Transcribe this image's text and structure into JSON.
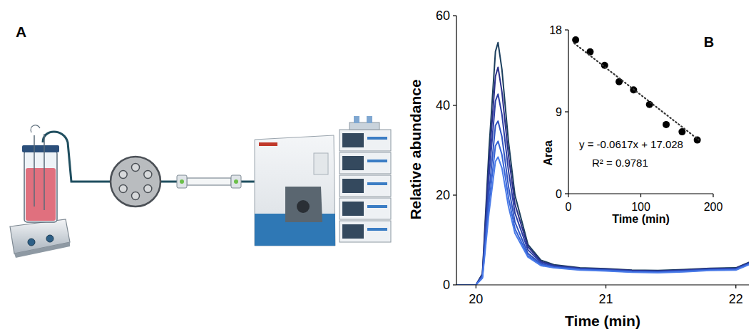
{
  "panel_labels": [
    "A",
    "B"
  ],
  "chart_data": [
    {
      "type": "line",
      "x_label": "Time (min)",
      "y_label": "Relative abundance",
      "x": [
        19.85,
        19.95,
        20.0,
        20.05,
        20.1,
        20.15,
        20.17,
        20.2,
        20.25,
        20.3,
        20.4,
        20.5,
        20.6,
        20.8,
        21.0,
        21.2,
        21.4,
        21.6,
        21.8,
        22.0,
        22.1
      ],
      "series": [
        {
          "color": "#1c3f5e",
          "values": [
            0,
            0,
            0,
            2.5,
            30,
            52,
            54,
            48,
            32,
            20,
            9,
            5.5,
            4.5,
            3.8,
            3.6,
            3.3,
            3.2,
            3.4,
            3.7,
            3.8,
            5.0
          ]
        },
        {
          "color": "#2a2f8a",
          "values": [
            0,
            0,
            0,
            2.3,
            27,
            46.5,
            48.5,
            43,
            29,
            18,
            8.5,
            5.2,
            4.3,
            3.7,
            3.5,
            3.2,
            3.1,
            3.3,
            3.6,
            3.7,
            4.9
          ]
        },
        {
          "color": "#2c3fa5",
          "values": [
            0,
            0,
            0,
            2.1,
            24,
            41,
            42.5,
            38,
            25.5,
            16,
            7.8,
            5.0,
            4.2,
            3.6,
            3.4,
            3.1,
            3.0,
            3.2,
            3.5,
            3.6,
            4.8
          ]
        },
        {
          "color": "#2f53c0",
          "values": [
            0,
            0,
            0,
            1.9,
            20.5,
            35.5,
            36.5,
            33,
            22,
            14,
            7,
            4.7,
            4.0,
            3.5,
            3.3,
            3.0,
            2.9,
            3.1,
            3.4,
            3.5,
            4.7
          ]
        },
        {
          "color": "#3563d6",
          "values": [
            0,
            0,
            0,
            1.7,
            18,
            31,
            32,
            29,
            19.5,
            12.5,
            6.5,
            4.5,
            3.9,
            3.4,
            3.2,
            2.9,
            2.8,
            3.0,
            3.3,
            3.4,
            4.6
          ]
        },
        {
          "color": "#4a7be8",
          "values": [
            0,
            0,
            0,
            1.5,
            16,
            27.5,
            28.5,
            26,
            17.5,
            11.5,
            6.2,
            4.3,
            3.8,
            3.3,
            3.1,
            2.8,
            2.7,
            2.9,
            3.2,
            3.3,
            4.5
          ]
        }
      ],
      "xlim": [
        19.85,
        22.1
      ],
      "ylim": [
        0,
        60
      ],
      "xticks": [
        20,
        21,
        22
      ],
      "yticks": [
        0,
        20,
        40,
        60
      ]
    },
    {
      "type": "scatter",
      "x_label": "Time (min)",
      "y_label": "Area",
      "x": [
        10,
        30,
        50,
        70,
        90,
        112,
        135,
        157,
        178
      ],
      "series": [
        {
          "type": "scatter",
          "marker": "circle",
          "color": "#000000",
          "values": [
            16.9,
            15.6,
            14.1,
            12.3,
            11.4,
            9.8,
            7.6,
            6.8,
            5.9
          ]
        },
        {
          "type": "line",
          "line_style": "dotted",
          "color": "#333333",
          "x": [
            8,
            180
          ],
          "values": [
            16.53,
            5.92
          ]
        }
      ],
      "annotations": [
        "y = -0.0617x + 17.028",
        "R² = 0.9781"
      ],
      "xlim": [
        0,
        200
      ],
      "ylim": [
        0,
        18
      ],
      "xticks": [
        0,
        100,
        200
      ],
      "yticks": [
        0,
        9,
        18
      ]
    }
  ]
}
